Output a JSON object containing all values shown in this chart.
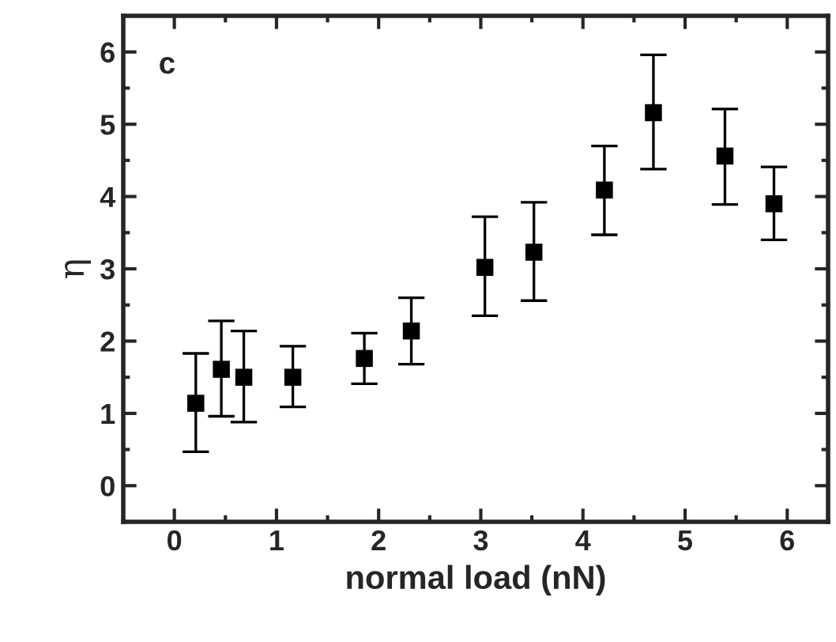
{
  "chart_data": {
    "type": "scatter",
    "xlabel": "normal load (nN)",
    "ylabel": "η",
    "annotations": [
      "c"
    ],
    "x": [
      0.21,
      0.46,
      0.68,
      1.16,
      1.86,
      2.32,
      3.04,
      3.52,
      4.21,
      4.69,
      5.39,
      5.87
    ],
    "series": [
      {
        "color": "#000000",
        "values": [
          1.14,
          1.61,
          1.5,
          1.5,
          1.76,
          2.14,
          3.02,
          3.23,
          4.09,
          5.16,
          4.56,
          3.9
        ],
        "errors": [
          [
            0.47,
            1.83
          ],
          [
            0.96,
            2.28
          ],
          [
            0.88,
            2.14
          ],
          [
            1.09,
            1.93
          ],
          [
            1.41,
            2.11
          ],
          [
            1.68,
            2.6
          ],
          [
            2.35,
            3.72
          ],
          [
            2.56,
            3.92
          ],
          [
            3.47,
            4.7
          ],
          [
            4.38,
            5.96
          ],
          [
            3.89,
            5.21
          ],
          [
            3.4,
            4.41
          ]
        ]
      }
    ],
    "marker": "square",
    "xlim": [
      -0.5,
      6.4
    ],
    "ylim": [
      -0.5,
      6.5
    ],
    "xticks": [
      0,
      1,
      2,
      3,
      4,
      5,
      6
    ],
    "yticks": [
      0,
      1,
      2,
      3,
      4,
      5,
      6
    ],
    "grid": false,
    "legend": false
  }
}
